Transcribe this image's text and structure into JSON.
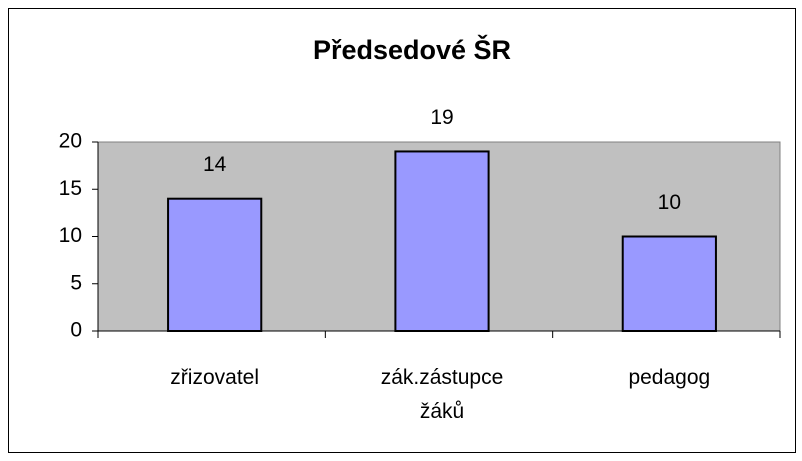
{
  "chart_data": {
    "type": "bar",
    "title": "Předsedové ŠR",
    "categories": [
      "zřizovatel",
      "zák.zástupce žáků",
      "pedagog"
    ],
    "values": [
      14,
      19,
      10
    ],
    "color": "#9999ff",
    "ylim": [
      0,
      20
    ],
    "yticks": [
      0,
      5,
      10,
      15,
      20
    ],
    "grid": false
  }
}
